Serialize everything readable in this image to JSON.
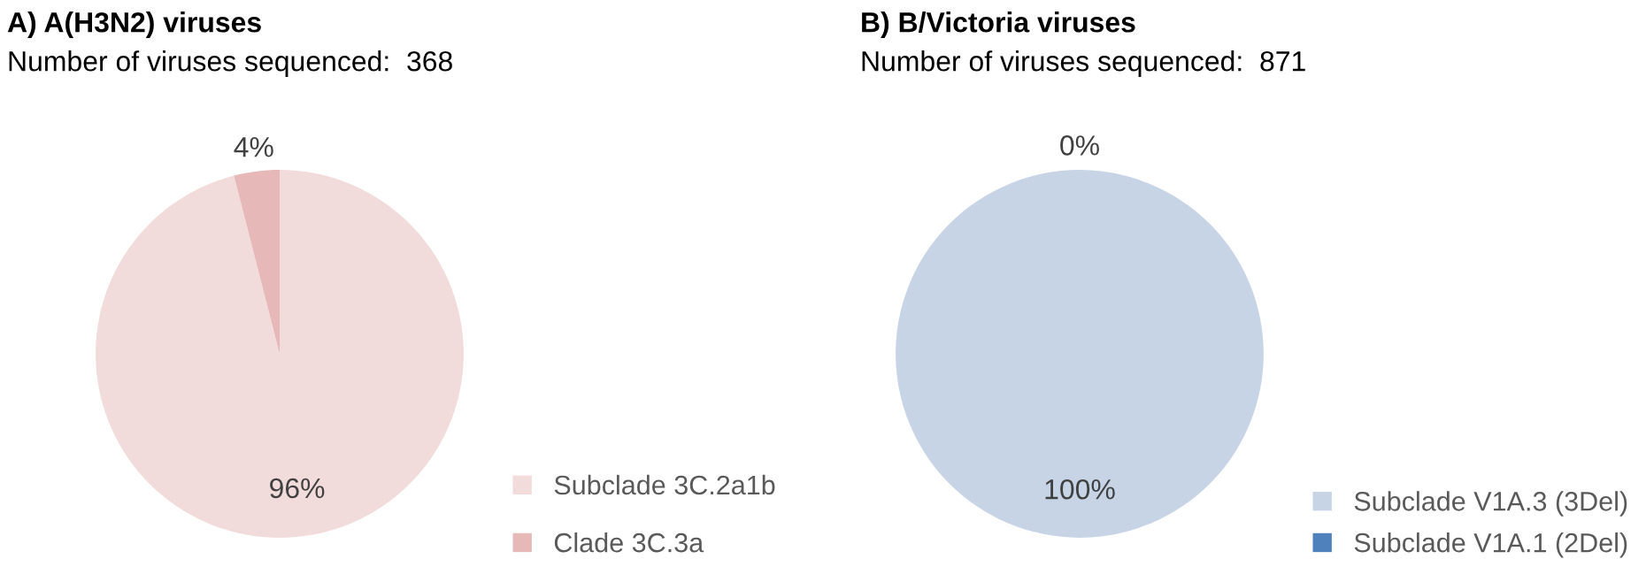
{
  "chart_data": [
    {
      "type": "pie",
      "title": "A) A(H3N2) viruses",
      "subtitle": "Number of viruses sequenced:  368",
      "categories": [
        "Subclade 3C.2a1b",
        "Clade 3C.3a"
      ],
      "values": [
        96,
        4
      ],
      "colors": [
        "#f2dcdb",
        "#e6b9b8"
      ],
      "value_labels": [
        "96%",
        "4%"
      ],
      "legend": "bottom right"
    },
    {
      "type": "pie",
      "title": "B) B/Victoria viruses",
      "subtitle": "Number of viruses sequenced:  871",
      "categories": [
        "Subclade V1A.3 (3Del)",
        "Subclade V1A.1 (2Del)"
      ],
      "values": [
        100,
        0
      ],
      "colors": [
        "#c6d4e6",
        "#4f81bd"
      ],
      "value_labels": [
        "100%",
        "0%"
      ],
      "legend": "bottom right"
    }
  ]
}
